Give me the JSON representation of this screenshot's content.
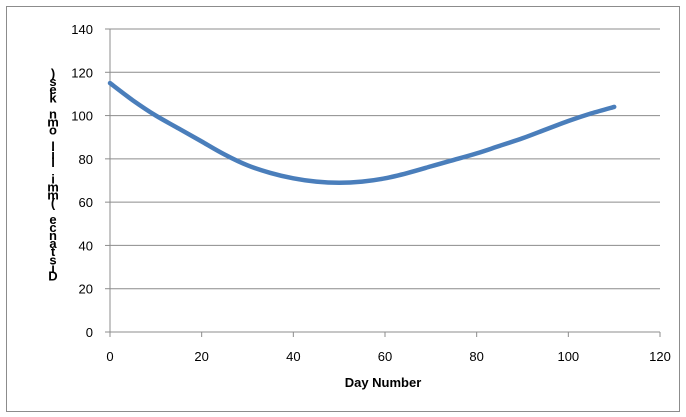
{
  "chart_data": {
    "type": "line",
    "title": "",
    "xlabel": "Day Number",
    "ylabel": "Distance (million km)",
    "ylabel_as_rendered": ")sek nmo lil imm( ecnatsiD",
    "xlim": [
      0,
      120
    ],
    "ylim": [
      0,
      140
    ],
    "xticks": [
      "0",
      "20",
      "40",
      "60",
      "80",
      "100",
      "120"
    ],
    "yticks": [
      "0",
      "20",
      "40",
      "60",
      "80",
      "100",
      "120",
      "140"
    ],
    "grid": "horizontal",
    "legend": "none",
    "line_color": "#4a7ebb",
    "series": [
      {
        "x": [
          0,
          5,
          10,
          15,
          20,
          25,
          30,
          35,
          40,
          45,
          50,
          55,
          60,
          65,
          70,
          75,
          80,
          85,
          90,
          95,
          100,
          105,
          110
        ],
        "values": [
          115,
          107,
          100,
          94,
          88,
          82,
          77,
          73.5,
          71,
          69.5,
          69,
          69.5,
          71,
          73.5,
          76.5,
          79.5,
          82.5,
          86,
          89.5,
          93.5,
          97.5,
          101,
          104
        ]
      }
    ]
  }
}
